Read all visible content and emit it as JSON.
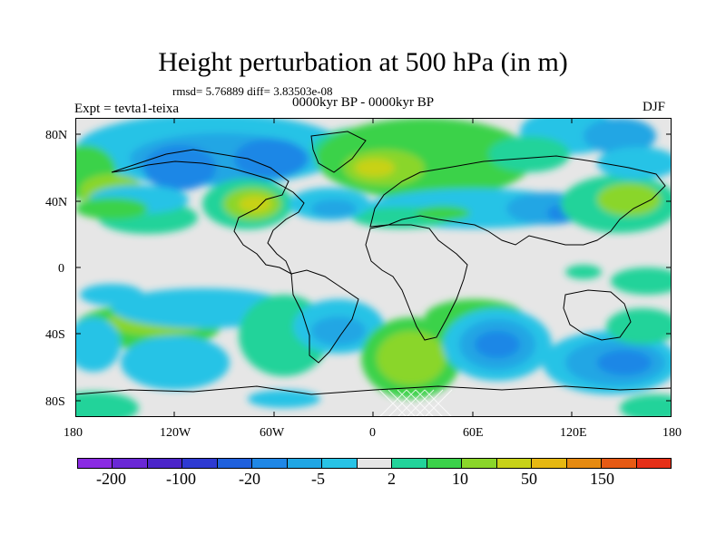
{
  "title": "Height perturbation at 500 hPa (in m)",
  "stats": "rmsd= 5.76889 diff= 3.83503e-08",
  "period": "0000kyr BP - 0000kyr BP",
  "experiment": "Expt = tevta1-teixa",
  "season": "DJF",
  "lat_labels": [
    "80N",
    "40N",
    "0",
    "40S",
    "80S"
  ],
  "lon_labels": [
    "180",
    "120W",
    "60W",
    "0",
    "60E",
    "120E",
    "180"
  ],
  "colorbar": {
    "colors": [
      "#8a2be2",
      "#6a28d6",
      "#4b25c9",
      "#2e3ad2",
      "#1f60dc",
      "#1f87e6",
      "#20a6e4",
      "#28c3e6",
      "#e6e6e6",
      "#22d39a",
      "#3bd24a",
      "#8ad62a",
      "#c8d218",
      "#e6b812",
      "#e68a10",
      "#e65a14",
      "#e63018"
    ],
    "labels": [
      "-200",
      "-100",
      "-20",
      "-5",
      "2",
      "10",
      "50",
      "150"
    ]
  }
}
